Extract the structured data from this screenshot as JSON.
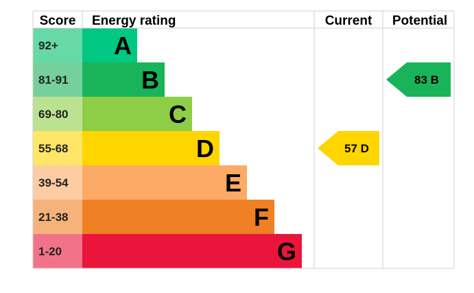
{
  "chart_data": {
    "type": "table",
    "headers": {
      "score": "Score",
      "rating": "Energy rating",
      "current": "Current",
      "potential": "Potential"
    },
    "bands": [
      {
        "letter": "A",
        "range": "92+",
        "color": "#00c781",
        "score_bg": "#66d9a7"
      },
      {
        "letter": "B",
        "range": "81-91",
        "color": "#19b459",
        "score_bg": "#75d09b"
      },
      {
        "letter": "C",
        "range": "69-80",
        "color": "#8dce46",
        "score_bg": "#bbe290"
      },
      {
        "letter": "D",
        "range": "55-68",
        "color": "#ffd500",
        "score_bg": "#ffe666"
      },
      {
        "letter": "E",
        "range": "39-54",
        "color": "#fcaa65",
        "score_bg": "#fdcca3"
      },
      {
        "letter": "F",
        "range": "21-38",
        "color": "#ef8023",
        "score_bg": "#f5b37b"
      },
      {
        "letter": "G",
        "range": "1-20",
        "color": "#e9153b",
        "score_bg": "#f27389"
      }
    ],
    "current": {
      "value": 57,
      "band": "D",
      "label": "57  D",
      "color": "#ffd500"
    },
    "potential": {
      "value": 83,
      "band": "B",
      "label": "83  B",
      "color": "#19b459"
    }
  }
}
